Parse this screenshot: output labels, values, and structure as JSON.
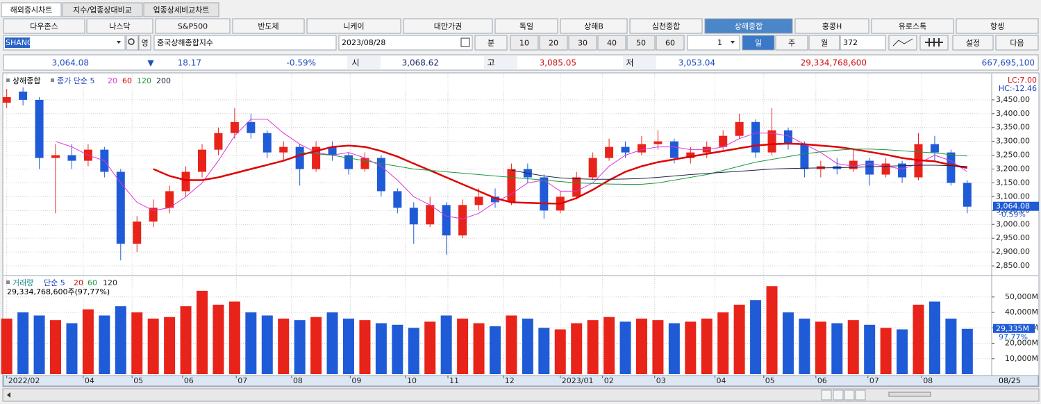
{
  "ui": {
    "tabs": [
      "해외증시차트",
      "지수/업종상대비교",
      "업종상세비교차트"
    ],
    "markets": [
      "다우존스",
      "나스닥",
      "S&P500",
      "반도체",
      "니케이",
      "대만가권",
      "독일",
      "상해B",
      "심천종합",
      "상해종합",
      "홍콩H",
      "유로스톡",
      "항셍"
    ],
    "selected_market": 9,
    "toolbar": {
      "code": "SHANG",
      "eng": "영",
      "name": "중국상해종합지수",
      "date": "2023/08/28",
      "minute": "분",
      "intervals": [
        "10",
        "20",
        "30",
        "40",
        "50",
        "60"
      ],
      "unit": "1",
      "periods": [
        "일",
        "주",
        "월"
      ],
      "selected_period": 0,
      "count": "372",
      "settings": "설정",
      "next": "다음"
    },
    "quote": {
      "last": "3,064.08",
      "arrow": "▼",
      "change": "18.17",
      "pct": "-0.59%",
      "open_label": "시",
      "open": "3,068.62",
      "high_label": "고",
      "high": "3,085.05",
      "low_label": "저",
      "low": "3,053.04",
      "volume": "29,334,768,600",
      "amount": "667,695,100"
    }
  },
  "chart_data": {
    "type": "candlestick",
    "title": "상해종합",
    "ma_label": "종가 단순 5",
    "up_color": "#e8231a",
    "down_color": "#1f5bd6",
    "grid": true,
    "xlim": [
      -0.2,
      60.5
    ],
    "xticks": [
      {
        "value": 0,
        "label": "2022/02"
      },
      {
        "value": 4.7,
        "label": "04"
      },
      {
        "value": 7.7,
        "label": "05"
      },
      {
        "value": 10.8,
        "label": "06"
      },
      {
        "value": 14.1,
        "label": "07"
      },
      {
        "value": 17.5,
        "label": "08"
      },
      {
        "value": 21.1,
        "label": "09"
      },
      {
        "value": 24.5,
        "label": "10"
      },
      {
        "value": 27.1,
        "label": "11"
      },
      {
        "value": 30.5,
        "label": "12"
      },
      {
        "value": 34.0,
        "label": "2023/01"
      },
      {
        "value": 36.6,
        "label": "02"
      },
      {
        "value": 39.8,
        "label": "03"
      },
      {
        "value": 43.5,
        "label": "04"
      },
      {
        "value": 46.5,
        "label": "05"
      },
      {
        "value": 49.7,
        "label": "06"
      },
      {
        "value": 52.9,
        "label": "07"
      },
      {
        "value": 56.2,
        "label": "08"
      }
    ],
    "last_date": "08/25",
    "ylim": [
      2820,
      3535
    ],
    "yticks": [
      {
        "value": 2850,
        "label": "2,850.00"
      },
      {
        "value": 2900,
        "label": "2,900.00"
      },
      {
        "value": 2950,
        "label": "2,950.00"
      },
      {
        "value": 3000,
        "label": "3,000.00"
      },
      {
        "value": 3050,
        "label": "3,050.00"
      },
      {
        "value": 3100,
        "label": "3,100.00"
      },
      {
        "value": 3150,
        "label": "3,150.00"
      },
      {
        "value": 3200,
        "label": "3,200.00"
      },
      {
        "value": 3250,
        "label": "3,250.00"
      },
      {
        "value": 3300,
        "label": "3,300.00"
      },
      {
        "value": 3350,
        "label": "3,350.00"
      },
      {
        "value": 3400,
        "label": "3,400.00"
      },
      {
        "value": 3450,
        "label": "3,450.00"
      }
    ],
    "lc": "LC:7.00",
    "hc": "HC:-12.46",
    "last_label": "3,064.08",
    "last_pct": "-0.59%",
    "ohlc": [
      [
        3440,
        3490,
        3420,
        3460
      ],
      [
        3480,
        3495,
        3430,
        3450
      ],
      [
        3450,
        3460,
        3200,
        3240
      ],
      [
        3240,
        3290,
        3040,
        3250
      ],
      [
        3250,
        3290,
        3200,
        3230
      ],
      [
        3230,
        3290,
        3210,
        3270
      ],
      [
        3270,
        3280,
        3170,
        3190
      ],
      [
        3190,
        3200,
        2870,
        2930
      ],
      [
        2930,
        3030,
        2900,
        3010
      ],
      [
        3010,
        3090,
        2990,
        3060
      ],
      [
        3060,
        3140,
        3040,
        3120
      ],
      [
        3120,
        3210,
        3100,
        3190
      ],
      [
        3190,
        3290,
        3170,
        3270
      ],
      [
        3270,
        3350,
        3250,
        3330
      ],
      [
        3330,
        3420,
        3310,
        3370
      ],
      [
        3370,
        3400,
        3310,
        3330
      ],
      [
        3330,
        3340,
        3240,
        3260
      ],
      [
        3260,
        3300,
        3230,
        3280
      ],
      [
        3280,
        3290,
        3140,
        3200
      ],
      [
        3200,
        3300,
        3190,
        3280
      ],
      [
        3280,
        3300,
        3230,
        3250
      ],
      [
        3250,
        3260,
        3180,
        3200
      ],
      [
        3200,
        3260,
        3190,
        3240
      ],
      [
        3240,
        3250,
        3100,
        3120
      ],
      [
        3120,
        3130,
        3040,
        3060
      ],
      [
        3060,
        3080,
        2930,
        3000
      ],
      [
        3000,
        3100,
        2990,
        3070
      ],
      [
        3070,
        3080,
        2890,
        2960
      ],
      [
        2960,
        3090,
        2950,
        3070
      ],
      [
        3070,
        3130,
        3050,
        3100
      ],
      [
        3100,
        3130,
        3060,
        3080
      ],
      [
        3080,
        3220,
        3070,
        3200
      ],
      [
        3200,
        3220,
        3150,
        3170
      ],
      [
        3170,
        3180,
        3020,
        3050
      ],
      [
        3050,
        3120,
        3040,
        3100
      ],
      [
        3100,
        3190,
        3090,
        3170
      ],
      [
        3170,
        3260,
        3160,
        3240
      ],
      [
        3240,
        3310,
        3230,
        3280
      ],
      [
        3280,
        3300,
        3240,
        3260
      ],
      [
        3260,
        3320,
        3250,
        3290
      ],
      [
        3290,
        3340,
        3270,
        3300
      ],
      [
        3300,
        3310,
        3220,
        3240
      ],
      [
        3240,
        3280,
        3220,
        3260
      ],
      [
        3260,
        3300,
        3240,
        3280
      ],
      [
        3280,
        3340,
        3270,
        3320
      ],
      [
        3320,
        3400,
        3310,
        3370
      ],
      [
        3370,
        3380,
        3240,
        3260
      ],
      [
        3260,
        3420,
        3250,
        3340
      ],
      [
        3340,
        3350,
        3270,
        3290
      ],
      [
        3290,
        3300,
        3170,
        3200
      ],
      [
        3200,
        3230,
        3170,
        3210
      ],
      [
        3210,
        3240,
        3180,
        3200
      ],
      [
        3200,
        3270,
        3190,
        3230
      ],
      [
        3230,
        3240,
        3140,
        3180
      ],
      [
        3180,
        3240,
        3170,
        3220
      ],
      [
        3220,
        3230,
        3150,
        3170
      ],
      [
        3170,
        3330,
        3160,
        3290
      ],
      [
        3290,
        3320,
        3230,
        3260
      ],
      [
        3260,
        3270,
        3140,
        3150
      ],
      [
        3150,
        3160,
        3040,
        3064.08
      ]
    ],
    "series": [
      {
        "name": "20",
        "color": "#dd33dd",
        "width": 1,
        "values": [
          null,
          null,
          null,
          3300,
          3280,
          3250,
          3230,
          3150,
          3080,
          3050,
          3060,
          3100,
          3150,
          3230,
          3320,
          3380,
          3380,
          3330,
          3290,
          3260,
          3250,
          3260,
          3240,
          3210,
          3160,
          3100,
          3070,
          3030,
          3020,
          3040,
          3080,
          3110,
          3150,
          3160,
          3120,
          3120,
          3150,
          3210,
          3250,
          3270,
          3280,
          3280,
          3270,
          3270,
          3280,
          3310,
          3330,
          3330,
          3320,
          3290,
          3260,
          3220,
          3210,
          3220,
          3210,
          3200,
          3220,
          3250,
          3230,
          3190
        ]
      },
      {
        "name": "60",
        "color": "#e00000",
        "width": 2.5,
        "values": [
          null,
          null,
          null,
          null,
          null,
          null,
          null,
          null,
          null,
          3200,
          3175,
          3160,
          3160,
          3170,
          3185,
          3200,
          3215,
          3230,
          3250,
          3265,
          3280,
          3285,
          3280,
          3265,
          3245,
          3220,
          3195,
          3170,
          3145,
          3120,
          3095,
          3080,
          3078,
          3076,
          3075,
          3095,
          3125,
          3160,
          3190,
          3210,
          3225,
          3235,
          3245,
          3255,
          3265,
          3275,
          3285,
          3290,
          3292,
          3290,
          3285,
          3280,
          3272,
          3262,
          3252,
          3240,
          3232,
          3228,
          3215,
          3204
        ]
      },
      {
        "name": "120",
        "color": "#1a9a3a",
        "width": 1,
        "values": [
          null,
          null,
          null,
          null,
          null,
          null,
          null,
          null,
          null,
          null,
          null,
          null,
          null,
          null,
          null,
          null,
          null,
          null,
          3260,
          3255,
          3250,
          3240,
          3230,
          3220,
          3210,
          3200,
          3195,
          3190,
          3185,
          3180,
          3175,
          3170,
          3165,
          3160,
          3155,
          3150,
          3148,
          3146,
          3145,
          3145,
          3150,
          3160,
          3170,
          3180,
          3195,
          3210,
          3225,
          3235,
          3245,
          3255,
          3262,
          3268,
          3272,
          3272,
          3270,
          3266,
          3262,
          3258,
          3252,
          3247
        ]
      },
      {
        "name": "200",
        "color": "#222244",
        "width": 1,
        "values": [
          null,
          null,
          null,
          null,
          null,
          null,
          null,
          null,
          null,
          null,
          null,
          null,
          null,
          null,
          null,
          null,
          null,
          null,
          null,
          null,
          null,
          null,
          null,
          null,
          null,
          null,
          null,
          null,
          null,
          null,
          null,
          3196,
          3185,
          3175,
          3168,
          3165,
          3163,
          3163,
          3164,
          3166,
          3170,
          3175,
          3180,
          3184,
          3188,
          3192,
          3196,
          3200,
          3202,
          3203,
          3204,
          3205,
          3206,
          3208,
          3210,
          3212,
          3214,
          3214,
          3212,
          3209
        ]
      }
    ],
    "volume": {
      "title": "거래량",
      "ma_label": "단순 5",
      "ma_names": [
        "20",
        "60",
        "120"
      ],
      "summary": "29,334,768,600주(97,77%)",
      "ylim": [
        0,
        62500
      ],
      "yticks": [
        {
          "value": 10000,
          "label": "10,000M"
        },
        {
          "value": 20000,
          "label": "20,000M"
        },
        {
          "value": 30000,
          "label": "30,000M"
        },
        {
          "value": 40000,
          "label": "40,000M"
        },
        {
          "value": 50000,
          "label": "50,000M"
        }
      ],
      "last_label": "29,335M",
      "last_pct": "97.77%",
      "values": [
        36000,
        40000,
        38000,
        35000,
        33000,
        42000,
        38000,
        44000,
        40000,
        36000,
        37000,
        44000,
        54000,
        45000,
        47000,
        40000,
        38000,
        36000,
        35000,
        37000,
        40000,
        36000,
        35000,
        33000,
        32000,
        30000,
        34000,
        38000,
        36000,
        33000,
        31000,
        38000,
        36000,
        30000,
        29000,
        33000,
        35000,
        37000,
        34000,
        36000,
        35000,
        33000,
        34000,
        36000,
        40000,
        45000,
        48000,
        57000,
        40000,
        36000,
        34000,
        33000,
        35000,
        32000,
        30000,
        29000,
        45000,
        47000,
        36000,
        29335
      ]
    }
  }
}
